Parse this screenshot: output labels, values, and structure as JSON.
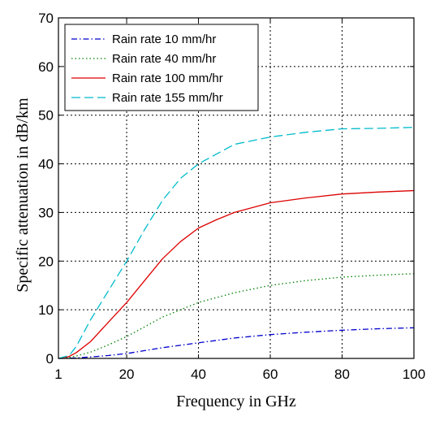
{
  "chart_data": {
    "type": "line",
    "xlabel": "Frequency in GHz",
    "ylabel": "Specific attenuation in dB/km",
    "xlim": [
      1,
      100
    ],
    "ylim": [
      0,
      70
    ],
    "xticks": [
      1,
      20,
      40,
      60,
      80,
      100
    ],
    "yticks": [
      0,
      10,
      20,
      30,
      40,
      50,
      60,
      70
    ],
    "grid": true,
    "legend_position": "top-left",
    "series": [
      {
        "name": "Rain rate 10 mm/hr",
        "color": "#0000cc",
        "dash": "dash-dot",
        "x": [
          1,
          4,
          6,
          10,
          15,
          20,
          25,
          30,
          40,
          50,
          60,
          70,
          80,
          90,
          100
        ],
        "y": [
          0,
          0.05,
          0.1,
          0.3,
          0.6,
          1.0,
          1.6,
          2.2,
          3.2,
          4.2,
          4.9,
          5.4,
          5.8,
          6.1,
          6.3
        ]
      },
      {
        "name": "Rain rate 40 mm/hr",
        "color": "#008000",
        "dash": "dotted",
        "x": [
          1,
          4,
          6,
          10,
          15,
          20,
          25,
          30,
          40,
          50,
          60,
          70,
          80,
          90,
          100
        ],
        "y": [
          0,
          0.2,
          0.5,
          1.3,
          2.8,
          4.5,
          6.5,
          8.5,
          11.5,
          13.5,
          15.0,
          16.0,
          16.7,
          17.1,
          17.4
        ]
      },
      {
        "name": "Rain rate 100 mm/hr",
        "color": "#dd0000",
        "dash": "solid",
        "x": [
          1,
          4,
          6,
          10,
          15,
          20,
          25,
          30,
          35,
          40,
          45,
          50,
          60,
          70,
          80,
          90,
          100
        ],
        "y": [
          0,
          0.4,
          1.2,
          3.5,
          7.5,
          11.5,
          16.0,
          20.5,
          24.0,
          26.8,
          28.5,
          30.0,
          32.0,
          33.0,
          33.8,
          34.2,
          34.5
        ]
      },
      {
        "name": "Rain rate 155 mm/hr",
        "color": "#00bbcc",
        "dash": "dashed",
        "x": [
          1,
          4,
          6,
          10,
          15,
          20,
          25,
          30,
          35,
          40,
          45,
          50,
          60,
          70,
          80,
          90,
          100
        ],
        "y": [
          0,
          0.6,
          2.5,
          8.0,
          14.0,
          20.0,
          26.5,
          32.5,
          37.0,
          40.0,
          42.0,
          44.0,
          45.5,
          46.5,
          47.2,
          47.3,
          47.5
        ]
      }
    ]
  }
}
